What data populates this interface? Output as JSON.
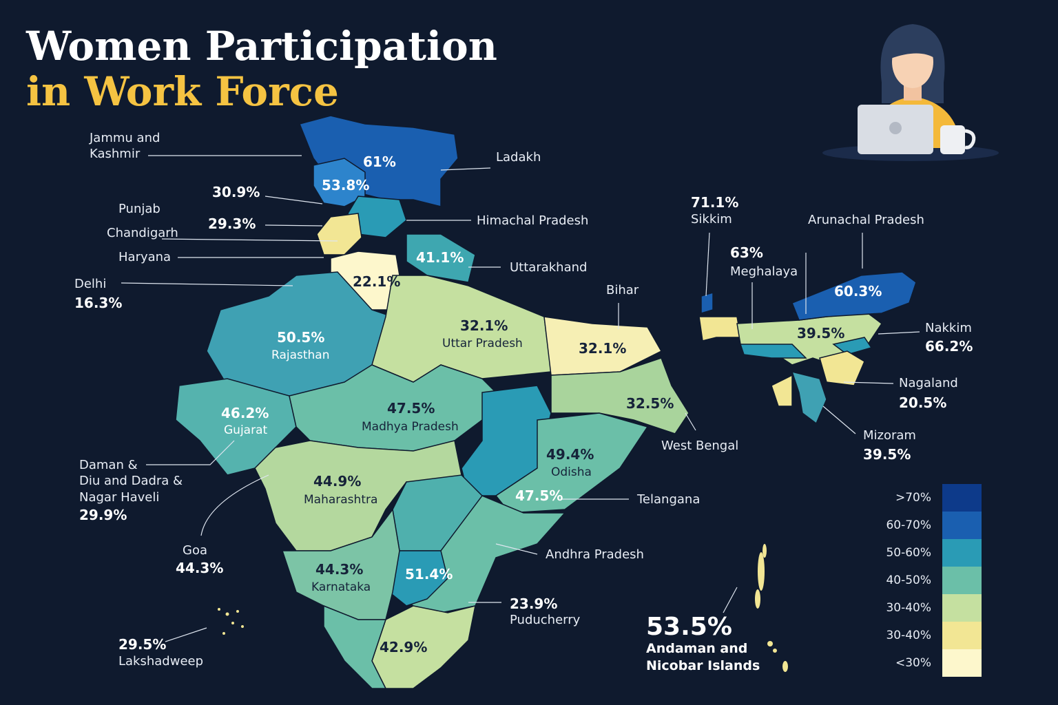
{
  "title": {
    "line1": "Women Participation",
    "line2": "in Work Force"
  },
  "labels": [
    "Jammu and\nKashmir",
    "Ladakh",
    "30.9%",
    "Punjab",
    "29.3%",
    "Chandigarh",
    "Haryana",
    "Delhi",
    "16.3%",
    "Himachal Pradesh",
    "Uttarakhand",
    "Bihar",
    "71.1%",
    "Sikkim",
    "Arunachal Pradesh",
    "63%",
    "Meghalaya",
    "Nakkim",
    "66.2%",
    "Nagaland",
    "20.5%",
    "Mizoram",
    "39.5%",
    "West Bengal",
    "Telangana",
    "Andhra Pradesh",
    "23.9%",
    "Puducherry",
    "Daman &\nDiu and Dadra &\nNagar Haveli",
    "29.9%",
    "Goa",
    "44.3%",
    "29.5%",
    "Lakshadweep",
    "53.5%",
    "Andaman and\nNicobar Islands"
  ],
  "region_labels": [
    "61%",
    "53.8%",
    "41.1%",
    "22.1%",
    "32.1%",
    "Uttar Pradesh",
    "32.1%",
    "50.5%",
    "Rajasthan",
    "46.2%",
    "Gujarat",
    "47.5%",
    "Madhya Pradesh",
    "32.5%",
    "49.4%",
    "Odisha",
    "44.9%",
    "Maharashtra",
    "47.5%",
    "44.3%",
    "Karnataka",
    "51.4%",
    "42.9%",
    "60.3%",
    "39.5%"
  ],
  "legend": {
    "items": [
      {
        "label": ">70%",
        "color": "#0d3a8a"
      },
      {
        "label": "60-70%",
        "color": "#1a5fb0"
      },
      {
        "label": "50-60%",
        "color": "#2a9bb5"
      },
      {
        "label": "40-50%",
        "color": "#6bbfa8"
      },
      {
        "label": "30-40%",
        "color": "#c5e0a0"
      },
      {
        "label": "30-40%",
        "color": "#f2e694"
      },
      {
        "label": "<30%",
        "color": "#fdf7cc"
      }
    ]
  }
}
